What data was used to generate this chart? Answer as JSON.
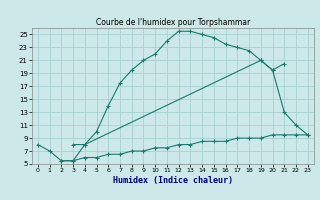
{
  "title": "Courbe de l'humidex pour Torpshammar",
  "xlabel": "Humidex (Indice chaleur)",
  "bg_color": "#cce8e8",
  "grid_color": "#aad4d4",
  "line_color": "#1a7a6e",
  "xlim": [
    -0.5,
    23.5
  ],
  "ylim": [
    5,
    26
  ],
  "yticks": [
    5,
    7,
    9,
    11,
    13,
    15,
    17,
    19,
    21,
    23,
    25
  ],
  "xticks": [
    0,
    1,
    2,
    3,
    4,
    5,
    6,
    7,
    8,
    9,
    10,
    11,
    12,
    13,
    14,
    15,
    16,
    17,
    18,
    19,
    20,
    21,
    22,
    23
  ],
  "line1_x": [
    0,
    1,
    2,
    3,
    4,
    5,
    6,
    7,
    8,
    9,
    10,
    11,
    12,
    13,
    14,
    15,
    16,
    17,
    18,
    19,
    20,
    21,
    22,
    23
  ],
  "line1_y": [
    8,
    7,
    5.5,
    5.5,
    8,
    10,
    14,
    17.5,
    19.5,
    21,
    22,
    24,
    25.5,
    25.5,
    25,
    24.5,
    23.5,
    23,
    22.5,
    21,
    19.5,
    13,
    11,
    9.5
  ],
  "line2_x": [
    3,
    4,
    19,
    20,
    21
  ],
  "line2_y": [
    8,
    8,
    21,
    19.5,
    20.5
  ],
  "line3_x": [
    2,
    3,
    4,
    5,
    6,
    7,
    8,
    9,
    10,
    11,
    12,
    13,
    14,
    15,
    16,
    17,
    18,
    19,
    20,
    21,
    22,
    23
  ],
  "line3_y": [
    5.5,
    5.5,
    6,
    6,
    6.5,
    6.5,
    7,
    7,
    7.5,
    7.5,
    8,
    8,
    8.5,
    8.5,
    8.5,
    9,
    9,
    9,
    9.5,
    9.5,
    9.5,
    9.5
  ]
}
